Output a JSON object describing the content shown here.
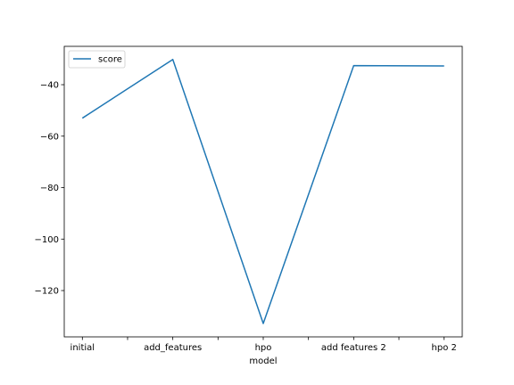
{
  "chart_data": {
    "type": "line",
    "categories": [
      "initial",
      "add_features",
      "hpo",
      "add features 2",
      "hpo 2"
    ],
    "series": [
      {
        "name": "score",
        "values": [
          -53.0,
          -30.2,
          -132.8,
          -32.6,
          -32.7
        ],
        "color": "#1f77b4"
      }
    ],
    "xlabel": "model",
    "ylabel": "",
    "title": "",
    "ylim": [
      -138.0,
      -25.1
    ],
    "yticks": [
      -120,
      -100,
      -80,
      -60,
      -40
    ],
    "ytick_labels": [
      "−120",
      "−100",
      "−80",
      "−60",
      "−40"
    ],
    "legend": {
      "placement": "top-left",
      "entries": [
        "score"
      ]
    },
    "grid": false
  }
}
